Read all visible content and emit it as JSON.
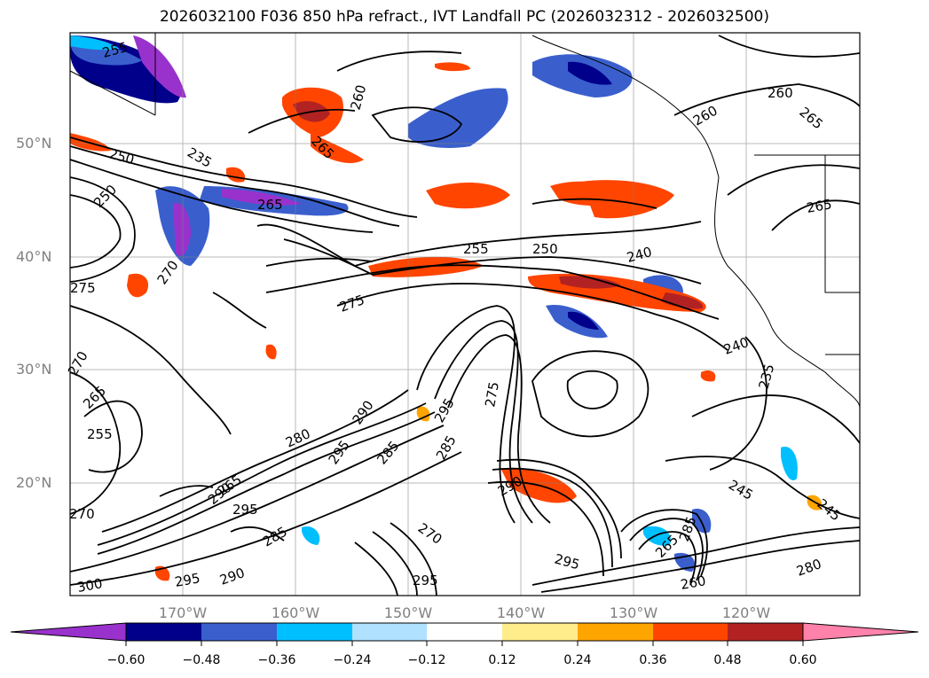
{
  "title": "2026032100 F036 850 hPa refract., IVT Landfall PC (2026032312 - 2026032500)",
  "map": {
    "lat_labels": [
      "50°N",
      "40°N",
      "30°N",
      "20°N"
    ],
    "lon_labels": [
      "170°W",
      "160°W",
      "150°W",
      "140°W",
      "130°W",
      "120°W"
    ],
    "contour_color": "#000000",
    "grid_color": "#808080",
    "contour_labels": [
      "255",
      "260",
      "265",
      "260",
      "260",
      "265",
      "235",
      "250",
      "265",
      "250",
      "255",
      "250",
      "240",
      "265",
      "270",
      "275",
      "275",
      "240",
      "235",
      "270",
      "265",
      "255",
      "295",
      "290",
      "280",
      "290",
      "285",
      "295",
      "275",
      "285",
      "245",
      "245",
      "265",
      "270",
      "295",
      "290",
      "295",
      "270",
      "285",
      "300",
      "280",
      "295",
      "290",
      "295",
      "260",
      "265",
      "285"
    ]
  },
  "colorbar": {
    "colors": [
      "#9932cc",
      "#00008b",
      "#3a5fcd",
      "#00bfff",
      "#b0e2ff",
      "#ffffff",
      "#ffec8b",
      "#ffa500",
      "#ff4500",
      "#b22222",
      "#ff82ab"
    ],
    "ticks": [
      "−0.60",
      "−0.48",
      "−0.36",
      "−0.24",
      "−0.12",
      "0.12",
      "0.24",
      "0.36",
      "0.48",
      "0.60"
    ]
  }
}
